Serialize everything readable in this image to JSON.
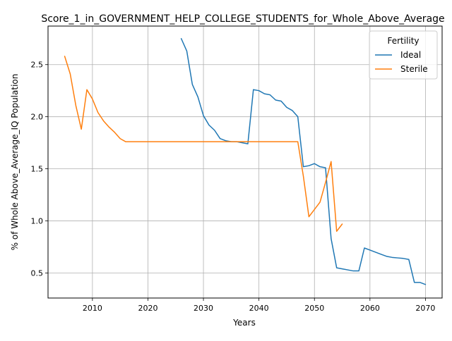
{
  "chart_data": {
    "type": "line",
    "title": "Score_1_in_GOVERNMENT_HELP_COLLEGE_STUDENTS_for_Whole_Above_Average",
    "xlabel": "Years",
    "ylabel": "% of Whole Above_Average_IQ Population",
    "xlim": [
      2002,
      2073
    ],
    "ylim": [
      0.26,
      2.87
    ],
    "xticks": [
      2010,
      2020,
      2030,
      2040,
      2050,
      2060,
      2070
    ],
    "yticks": [
      0.5,
      1.0,
      1.5,
      2.0,
      2.5
    ],
    "xtick_labels": [
      "2010",
      "2020",
      "2030",
      "2040",
      "2050",
      "2060",
      "2070"
    ],
    "ytick_labels": [
      "0.5",
      "1.0",
      "1.5",
      "2.0",
      "2.5"
    ],
    "grid": true,
    "legend": {
      "title": "Fertility",
      "position": "top-right"
    },
    "series": [
      {
        "name": "Ideal",
        "color": "#1f77b4",
        "x": [
          2026,
          2027,
          2028,
          2029,
          2030,
          2031,
          2032,
          2033,
          2034,
          2035,
          2036,
          2037,
          2038,
          2039,
          2040,
          2041,
          2042,
          2043,
          2044,
          2045,
          2046,
          2047,
          2048,
          2049,
          2050,
          2051,
          2052,
          2053,
          2054,
          2055,
          2056,
          2057,
          2058,
          2059,
          2060,
          2061,
          2062,
          2063,
          2064,
          2065,
          2066,
          2067,
          2068,
          2069,
          2070
        ],
        "y": [
          2.75,
          2.63,
          2.31,
          2.19,
          2.01,
          1.92,
          1.87,
          1.79,
          1.77,
          1.76,
          1.76,
          1.75,
          1.74,
          2.26,
          2.25,
          2.22,
          2.21,
          2.16,
          2.15,
          2.09,
          2.06,
          2.0,
          1.52,
          1.53,
          1.55,
          1.52,
          1.51,
          0.83,
          0.55,
          0.54,
          0.53,
          0.52,
          0.52,
          0.74,
          0.72,
          0.7,
          0.68,
          0.66,
          0.65,
          0.645,
          0.64,
          0.63,
          0.41,
          0.41,
          0.39
        ]
      },
      {
        "name": "Sterile",
        "color": "#ff7f0e",
        "x": [
          2005,
          2006,
          2007,
          2008,
          2009,
          2010,
          2011,
          2012,
          2013,
          2014,
          2015,
          2016,
          2017,
          2018,
          2019,
          2020,
          2021,
          2022,
          2023,
          2024,
          2025,
          2026,
          2027,
          2028,
          2029,
          2030,
          2031,
          2032,
          2033,
          2034,
          2035,
          2036,
          2037,
          2038,
          2039,
          2040,
          2041,
          2042,
          2043,
          2044,
          2045,
          2046,
          2047,
          2048,
          2049,
          2050,
          2051,
          2052,
          2053,
          2054,
          2055
        ],
        "y": [
          2.58,
          2.41,
          2.11,
          1.88,
          2.26,
          2.17,
          2.04,
          1.96,
          1.9,
          1.85,
          1.79,
          1.76,
          1.76,
          1.76,
          1.76,
          1.76,
          1.76,
          1.76,
          1.76,
          1.76,
          1.76,
          1.76,
          1.76,
          1.76,
          1.76,
          1.76,
          1.76,
          1.76,
          1.76,
          1.76,
          1.76,
          1.76,
          1.76,
          1.76,
          1.76,
          1.76,
          1.76,
          1.76,
          1.76,
          1.76,
          1.76,
          1.76,
          1.76,
          1.43,
          1.04,
          1.11,
          1.18,
          1.37,
          1.57,
          0.9,
          0.97
        ]
      }
    ]
  }
}
